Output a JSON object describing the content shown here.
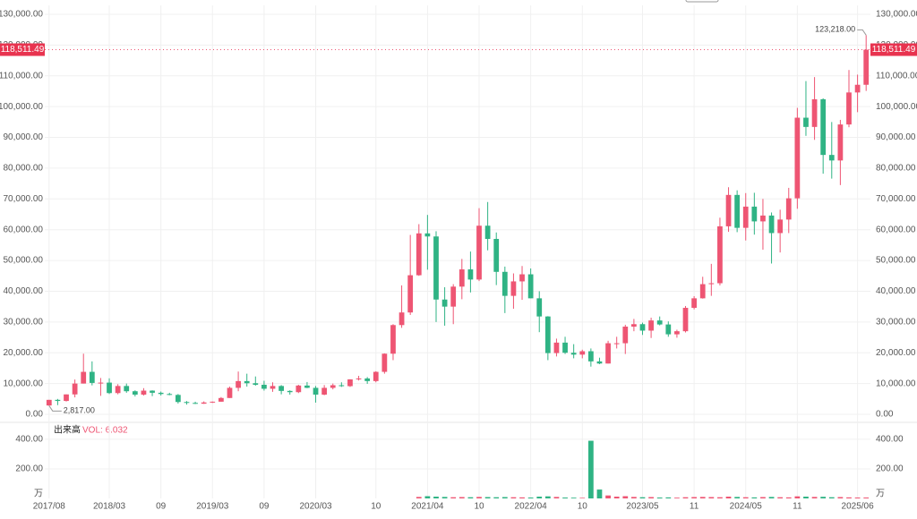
{
  "chart_data": {
    "type": "candlestick",
    "categories": [
      "2017/08",
      null,
      null,
      null,
      null,
      null,
      null,
      "2018/03",
      null,
      null,
      null,
      null,
      null,
      "09",
      null,
      null,
      null,
      null,
      null,
      "2019/03",
      null,
      null,
      null,
      null,
      null,
      "09",
      null,
      null,
      null,
      null,
      null,
      "2020/03",
      null,
      null,
      null,
      null,
      null,
      null,
      "10",
      null,
      null,
      null,
      null,
      null,
      "2021/04",
      null,
      null,
      null,
      null,
      null,
      "10",
      null,
      null,
      null,
      null,
      null,
      "2022/04",
      null,
      null,
      null,
      null,
      null,
      "10",
      null,
      null,
      null,
      null,
      null,
      null,
      "2023/05",
      null,
      null,
      null,
      null,
      null,
      "11",
      null,
      null,
      null,
      null,
      null,
      "2024/05",
      null,
      null,
      null,
      null,
      null,
      "11",
      null,
      null,
      null,
      null,
      null,
      null,
      "2025/06",
      null
    ],
    "open": [
      2870,
      4700,
      4340,
      6470,
      10000,
      13800,
      10200,
      10300,
      6900,
      9200,
      7500,
      6400,
      7700,
      7000,
      6600,
      6300,
      4000,
      3700,
      3450,
      3850,
      4100,
      5300,
      8600,
      10800,
      10100,
      9600,
      8300,
      9200,
      7600,
      7200,
      9350,
      8600,
      6400,
      8600,
      9450,
      9150,
      11350,
      11650,
      10800,
      13800,
      19700,
      29000,
      33100,
      45200,
      58800,
      57800,
      37300,
      35000,
      41500,
      47100,
      43800,
      61300,
      57000,
      46300,
      38500,
      43200,
      45500,
      37700,
      31800,
      19900,
      23300,
      20000,
      19400,
      20500,
      17200,
      16500,
      23100,
      23100,
      28500,
      29300,
      27200,
      30500,
      29200,
      26000,
      27000,
      34600,
      37700,
      42300,
      42600,
      61100,
      71300,
      60600,
      67500,
      62700,
      64600,
      58900,
      63300,
      70200,
      96400,
      93400,
      102400,
      84300,
      82500,
      94200,
      104600,
      107100
    ],
    "high": [
      4700,
      5000,
      6470,
      11300,
      19700,
      17200,
      11800,
      11700,
      9800,
      10000,
      7800,
      8500,
      7800,
      7400,
      7000,
      6600,
      4300,
      4100,
      4200,
      4150,
      5600,
      9000,
      13900,
      13200,
      12300,
      10900,
      10400,
      9500,
      7800,
      9600,
      10500,
      9200,
      9500,
      10000,
      10400,
      11400,
      12500,
      12100,
      14000,
      19800,
      29300,
      41900,
      58300,
      61800,
      64800,
      59500,
      41300,
      42300,
      50500,
      52900,
      67000,
      69000,
      59100,
      48000,
      45800,
      48200,
      47400,
      40000,
      31900,
      24600,
      25200,
      22800,
      21000,
      21400,
      18400,
      23900,
      25200,
      29100,
      31000,
      29800,
      31400,
      31800,
      30200,
      27500,
      35200,
      38400,
      44700,
      48900,
      63900,
      73800,
      72800,
      71900,
      72000,
      70000,
      65600,
      66500,
      73600,
      99600,
      108300,
      109600,
      102700,
      95000,
      95700,
      111900,
      110400,
      123218
    ],
    "low": [
      2817,
      2980,
      4160,
      5500,
      10000,
      9400,
      6000,
      6600,
      6500,
      7000,
      5800,
      6100,
      5900,
      6100,
      6200,
      3500,
      3150,
      3350,
      3400,
      3700,
      4100,
      5300,
      7500,
      9000,
      9300,
      7700,
      7300,
      6500,
      6400,
      6900,
      8500,
      3800,
      6200,
      8100,
      8900,
      8900,
      11000,
      9900,
      10400,
      13200,
      17600,
      28100,
      32300,
      45000,
      47000,
      30000,
      28800,
      29300,
      37400,
      39600,
      43300,
      53300,
      42000,
      32900,
      34300,
      37200,
      37700,
      26700,
      17600,
      18800,
      19600,
      18200,
      18200,
      15500,
      16300,
      16500,
      21400,
      19600,
      27000,
      25800,
      24800,
      28900,
      25200,
      24900,
      26600,
      34100,
      37600,
      38500,
      41900,
      59300,
      59200,
      56500,
      58400,
      53500,
      49000,
      52600,
      58900,
      66800,
      90500,
      89200,
      78200,
      76600,
      74500,
      93300,
      98200,
      105100
    ],
    "close": [
      4700,
      4340,
      6470,
      10000,
      13800,
      10200,
      10300,
      6900,
      9200,
      7500,
      6400,
      7700,
      7000,
      6600,
      6300,
      4000,
      3700,
      3450,
      3850,
      4100,
      5300,
      8600,
      10800,
      10100,
      9600,
      8300,
      9200,
      7600,
      7200,
      9350,
      8600,
      6400,
      8600,
      9450,
      9150,
      11350,
      11650,
      10800,
      13800,
      19700,
      29000,
      33100,
      45200,
      58800,
      57800,
      37300,
      35000,
      41500,
      47100,
      43800,
      61300,
      57000,
      46300,
      38500,
      43200,
      45500,
      37700,
      31800,
      19900,
      23300,
      20000,
      19400,
      20500,
      17200,
      16500,
      23100,
      23100,
      28500,
      29300,
      27200,
      30500,
      29200,
      26000,
      27000,
      34600,
      37700,
      42300,
      42600,
      61100,
      71300,
      60600,
      67500,
      62700,
      64600,
      58900,
      63300,
      70200,
      96400,
      93400,
      102400,
      84300,
      82500,
      94200,
      104600,
      107100,
      118511.49
    ],
    "volume": [
      null,
      null,
      null,
      null,
      null,
      null,
      null,
      null,
      null,
      null,
      null,
      null,
      null,
      null,
      null,
      null,
      null,
      null,
      null,
      null,
      null,
      null,
      null,
      null,
      null,
      null,
      null,
      null,
      null,
      null,
      null,
      null,
      null,
      null,
      null,
      null,
      null,
      null,
      null,
      null,
      null,
      null,
      null,
      10,
      15,
      12,
      10,
      8,
      9,
      8,
      10,
      9,
      8,
      9,
      8,
      7,
      6,
      12,
      14,
      10,
      6,
      5,
      4,
      390,
      60,
      20,
      12,
      15,
      10,
      8,
      9,
      6,
      7,
      5,
      8,
      9,
      10,
      9,
      8,
      12,
      10,
      8,
      7,
      9,
      10,
      8,
      7,
      14,
      12,
      10,
      11,
      8,
      9,
      7,
      6,
      6.032
    ],
    "up_color": "#ee5573",
    "down_color": "#2fb384",
    "ylim": [
      0,
      130000
    ],
    "yticks": [
      {
        "value": 0,
        "label": "0.00"
      },
      {
        "value": 10000,
        "label": "10,000.00"
      },
      {
        "value": 20000,
        "label": "20,000.00"
      },
      {
        "value": 30000,
        "label": "30,000.00"
      },
      {
        "value": 40000,
        "label": "40,000.00"
      },
      {
        "value": 50000,
        "label": "50,000.00"
      },
      {
        "value": 60000,
        "label": "60,000.00"
      },
      {
        "value": 70000,
        "label": "70,000.00"
      },
      {
        "value": 80000,
        "label": "80,000.00"
      },
      {
        "value": 90000,
        "label": "90,000.00"
      },
      {
        "value": 100000,
        "label": "100,000.00"
      },
      {
        "value": 110000,
        "label": "110,000.00"
      },
      {
        "value": 120000,
        "label": "120,000.00"
      },
      {
        "value": 130000,
        "label": "130,000.00"
      }
    ],
    "volume_title": "出来高",
    "volume_label": "VOL: 6.032",
    "volume_unit": "万",
    "vlim": [
      0,
      460
    ],
    "vticks": [
      {
        "value": 200,
        "label": "200.00"
      },
      {
        "value": 400,
        "label": "400.00"
      }
    ],
    "last_price": {
      "value": 118511.49,
      "label": "118,511.49"
    },
    "max_label": {
      "value": 123218,
      "label": "123,218.00"
    },
    "min_label": {
      "value": 2817,
      "label": "2,817.00"
    },
    "grid": true
  }
}
